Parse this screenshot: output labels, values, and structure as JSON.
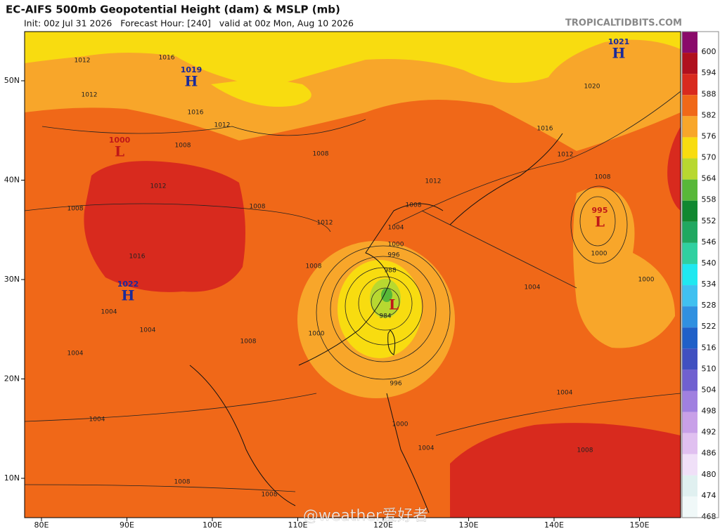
{
  "header": {
    "title": "EC-AIFS 500mb Geopotential Height (dam) & MSLP (mb)",
    "subtitle": "Init: 00z Jul 31 2026   Forecast Hour: [240]   valid at 00z Mon, Aug 10 2026",
    "site": "TROPICALTIDBITS.COM"
  },
  "colorbar": {
    "levels": [
      600,
      594,
      588,
      582,
      576,
      570,
      564,
      558,
      552,
      546,
      540,
      534,
      528,
      522,
      516,
      510,
      504,
      498,
      492,
      486,
      480,
      474,
      468
    ],
    "colors": [
      "#8a0a6a",
      "#b0101e",
      "#d82a1e",
      "#f06818",
      "#f8a62a",
      "#f8dc10",
      "#b8d830",
      "#58b838",
      "#108830",
      "#20a860",
      "#30d0a0",
      "#20e8f0",
      "#40c0f0",
      "#3090e0",
      "#2060c8",
      "#4050c0",
      "#7060d0",
      "#a080e0",
      "#c8a0e8",
      "#e0c0f0",
      "#f0e0f8",
      "#e0f0f0",
      "#f0f8f8"
    ]
  },
  "lat_labels": [
    "50N",
    "40N",
    "30N",
    "20N",
    "10N"
  ],
  "lon_labels": [
    "80E",
    "90E",
    "100E",
    "110E",
    "120E",
    "130E",
    "140E",
    "150E"
  ],
  "centers": [
    {
      "letter": "H",
      "value": 1019
    },
    {
      "letter": "H",
      "value": 1021
    },
    {
      "letter": "L",
      "value": 1000
    },
    {
      "letter": "H",
      "value": 1022
    },
    {
      "letter": "L",
      "value": 995
    },
    {
      "letter": "L"
    }
  ],
  "isobar_labels": [
    1012,
    1016,
    1012,
    1016,
    1012,
    1008,
    1008,
    1008,
    1012,
    1012,
    1008,
    1004,
    1000,
    996,
    988,
    984,
    1000,
    996,
    1004,
    1004,
    1000,
    1004,
    1008,
    1004,
    1008,
    1008,
    1012,
    1016,
    1020,
    1008,
    1000,
    1000,
    1008,
    1012,
    1016,
    1004,
    1004,
    1008,
    1004,
    1008
  ],
  "watermark": "@weather爱好者"
}
